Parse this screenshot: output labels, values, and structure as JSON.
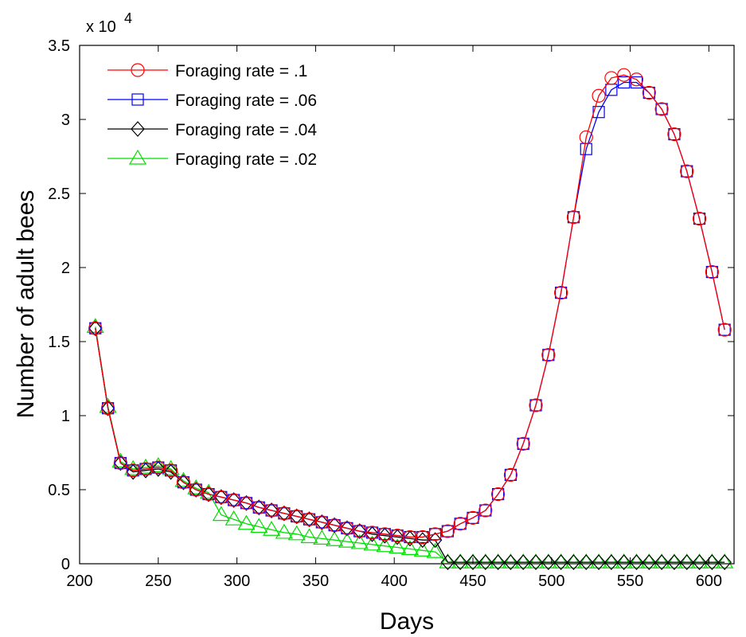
{
  "chart_data": {
    "type": "line",
    "xlabel": "Days",
    "ylabel": "Number of adult bees",
    "y_multiplier_label": "x 10",
    "y_multiplier_exponent": "4",
    "xlim": [
      200,
      616
    ],
    "ylim": [
      0,
      3.5
    ],
    "xticks": [
      "200",
      "250",
      "300",
      "350",
      "400",
      "450",
      "500",
      "550",
      "600"
    ],
    "yticks": [
      "0",
      "0.5",
      "1",
      "1.5",
      "2",
      "2.5",
      "3",
      "3.5"
    ],
    "grid": false,
    "legend_position": "top-left",
    "series": [
      {
        "name": "Foraging rate = .1",
        "color": "#ff0000",
        "marker": "circle",
        "x": [
          210,
          218,
          226,
          234,
          242,
          250,
          258,
          266,
          274,
          282,
          290,
          298,
          306,
          314,
          322,
          330,
          338,
          346,
          354,
          362,
          370,
          378,
          386,
          394,
          402,
          410,
          418,
          426,
          434,
          442,
          450,
          458,
          466,
          474,
          482,
          490,
          498,
          506,
          514,
          522,
          530,
          538,
          546,
          554,
          562,
          570,
          578,
          586,
          594,
          602,
          610
        ],
        "y": [
          1.59,
          1.05,
          0.68,
          0.63,
          0.64,
          0.65,
          0.63,
          0.55,
          0.5,
          0.47,
          0.45,
          0.43,
          0.41,
          0.38,
          0.36,
          0.34,
          0.32,
          0.3,
          0.28,
          0.26,
          0.24,
          0.22,
          0.21,
          0.2,
          0.19,
          0.18,
          0.18,
          0.2,
          0.22,
          0.27,
          0.31,
          0.36,
          0.47,
          0.6,
          0.81,
          1.07,
          1.41,
          1.83,
          2.34,
          2.88,
          3.16,
          3.28,
          3.3,
          3.27,
          3.18,
          3.07,
          2.9,
          2.65,
          2.33,
          1.97,
          1.58
        ]
      },
      {
        "name": "Foraging rate = .06",
        "color": "#0000ff",
        "marker": "square",
        "x": [
          210,
          218,
          226,
          234,
          242,
          250,
          258,
          266,
          274,
          282,
          290,
          298,
          306,
          314,
          322,
          330,
          338,
          346,
          354,
          362,
          370,
          378,
          386,
          394,
          402,
          410,
          418,
          426,
          434,
          442,
          450,
          458,
          466,
          474,
          482,
          490,
          498,
          506,
          514,
          522,
          530,
          538,
          546,
          554,
          562,
          570,
          578,
          586,
          594,
          602,
          610
        ],
        "y": [
          1.59,
          1.05,
          0.68,
          0.63,
          0.64,
          0.65,
          0.63,
          0.55,
          0.5,
          0.47,
          0.45,
          0.43,
          0.41,
          0.38,
          0.36,
          0.34,
          0.32,
          0.3,
          0.28,
          0.26,
          0.24,
          0.22,
          0.21,
          0.2,
          0.19,
          0.18,
          0.18,
          0.2,
          0.22,
          0.27,
          0.31,
          0.36,
          0.47,
          0.6,
          0.81,
          1.07,
          1.41,
          1.83,
          2.34,
          2.8,
          3.05,
          3.2,
          3.25,
          3.25,
          3.18,
          3.07,
          2.9,
          2.65,
          2.33,
          1.97,
          1.58
        ]
      },
      {
        "name": "Foraging rate = .04",
        "color": "#000000",
        "marker": "diamond",
        "x": [
          210,
          218,
          226,
          234,
          242,
          250,
          258,
          266,
          274,
          282,
          290,
          298,
          306,
          314,
          322,
          330,
          338,
          346,
          354,
          362,
          370,
          378,
          386,
          394,
          402,
          410,
          418,
          426,
          434,
          442,
          450,
          458,
          466,
          474,
          482,
          490,
          498,
          506,
          514,
          522,
          530,
          538,
          546,
          554,
          562,
          570,
          578,
          586,
          594,
          602,
          610
        ],
        "y": [
          1.59,
          1.05,
          0.68,
          0.62,
          0.63,
          0.64,
          0.62,
          0.55,
          0.5,
          0.47,
          0.45,
          0.43,
          0.41,
          0.38,
          0.36,
          0.34,
          0.32,
          0.3,
          0.28,
          0.26,
          0.24,
          0.22,
          0.2,
          0.19,
          0.18,
          0.17,
          0.16,
          0.16,
          0.01,
          0.01,
          0.01,
          0.01,
          0.01,
          0.01,
          0.01,
          0.01,
          0.01,
          0.01,
          0.01,
          0.01,
          0.01,
          0.01,
          0.01,
          0.01,
          0.01,
          0.01,
          0.01,
          0.01,
          0.01,
          0.01,
          0.01
        ]
      },
      {
        "name": "Foraging rate = .02",
        "color": "#00dd00",
        "marker": "triangle",
        "x": [
          210,
          218,
          226,
          234,
          242,
          250,
          258,
          266,
          274,
          282,
          290,
          298,
          306,
          314,
          322,
          330,
          338,
          346,
          354,
          362,
          370,
          378,
          386,
          394,
          402,
          410,
          418,
          426,
          434,
          442,
          450,
          458,
          466,
          474,
          482,
          490,
          498,
          506,
          514,
          522,
          530,
          538,
          546,
          554,
          562,
          570,
          578,
          586,
          594,
          602,
          610
        ],
        "y": [
          1.6,
          1.06,
          0.69,
          0.64,
          0.65,
          0.66,
          0.64,
          0.56,
          0.51,
          0.48,
          0.33,
          0.3,
          0.27,
          0.25,
          0.23,
          0.21,
          0.2,
          0.18,
          0.17,
          0.16,
          0.15,
          0.14,
          0.13,
          0.12,
          0.11,
          0.1,
          0.09,
          0.08,
          0.01,
          0.01,
          0.01,
          0.01,
          0.01,
          0.01,
          0.01,
          0.01,
          0.01,
          0.01,
          0.01,
          0.01,
          0.01,
          0.01,
          0.01,
          0.01,
          0.01,
          0.01,
          0.01,
          0.01,
          0.01,
          0.01,
          0.01
        ]
      }
    ]
  }
}
